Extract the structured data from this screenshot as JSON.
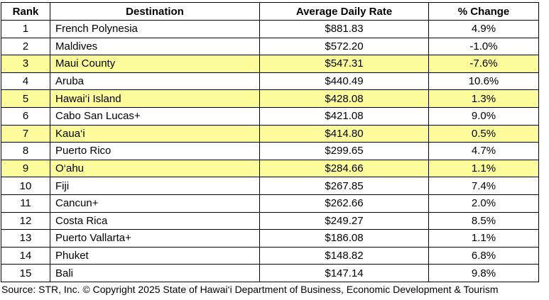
{
  "table": {
    "header": [
      "Rank",
      "Destination",
      "Average Daily Rate",
      "% Change"
    ],
    "highlight_color": "#fcfc9c",
    "rows": [
      {
        "cells": [
          "1",
          "French Polynesia",
          "$881.83",
          "4.9%"
        ],
        "highlight": false
      },
      {
        "cells": [
          "2",
          "Maldives",
          "$572.20",
          "-1.0%"
        ],
        "highlight": false
      },
      {
        "cells": [
          "3",
          "Maui County",
          "$547.31",
          "-7.6%"
        ],
        "highlight": true
      },
      {
        "cells": [
          "4",
          "Aruba",
          "$440.49",
          "10.6%"
        ],
        "highlight": false
      },
      {
        "cells": [
          "5",
          "Hawai‘i Island",
          "$428.08",
          "1.3%"
        ],
        "highlight": true
      },
      {
        "cells": [
          "6",
          "Cabo San Lucas+",
          "$421.08",
          "9.0%"
        ],
        "highlight": false
      },
      {
        "cells": [
          "7",
          "Kaua‘i",
          "$414.80",
          "0.5%"
        ],
        "highlight": true
      },
      {
        "cells": [
          "8",
          "Puerto Rico",
          "$299.65",
          "4.7%"
        ],
        "highlight": false
      },
      {
        "cells": [
          "9",
          "O‘ahu",
          "$284.66",
          "1.1%"
        ],
        "highlight": true
      },
      {
        "cells": [
          "10",
          "Fiji",
          "$267.85",
          "7.4%"
        ],
        "highlight": false
      },
      {
        "cells": [
          "11",
          "Cancun+",
          "$262.66",
          "2.0%"
        ],
        "highlight": false
      },
      {
        "cells": [
          "12",
          "Costa Rica",
          "$249.27",
          "8.5%"
        ],
        "highlight": false
      },
      {
        "cells": [
          "13",
          "Puerto Vallarta+",
          "$186.08",
          "1.1%"
        ],
        "highlight": false
      },
      {
        "cells": [
          "14",
          "Phuket",
          "$148.82",
          "6.8%"
        ],
        "highlight": false
      },
      {
        "cells": [
          "15",
          "Bali",
          "$147.14",
          "9.8%"
        ],
        "highlight": false
      }
    ]
  },
  "footer": {
    "source": "Source: STR, Inc.  © Copyright 2025 State of Hawai‘i Department of Business, Economic Development & Tourism"
  }
}
